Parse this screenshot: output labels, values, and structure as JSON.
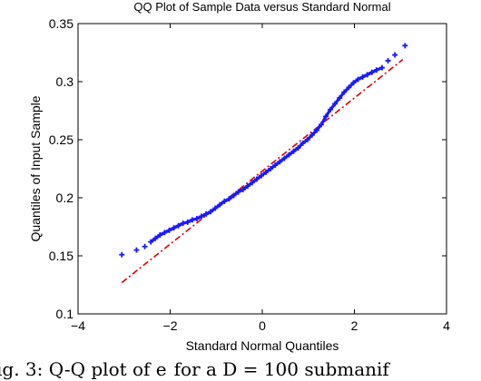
{
  "chart_data": {
    "type": "scatter",
    "title": "QQ Plot of Sample Data versus Standard Normal",
    "xlabel": "Standard Normal Quantiles",
    "ylabel": "Quantiles of Input Sample",
    "xlim": [
      -4,
      4
    ],
    "ylim": [
      0.1,
      0.35
    ],
    "xticks": [
      -4,
      -2,
      0,
      2,
      4
    ],
    "yticks": [
      0.1,
      0.15,
      0.2,
      0.25,
      0.3,
      0.35
    ],
    "xtick_labels": [
      "−4",
      "−2",
      "0",
      "2",
      "4"
    ],
    "ytick_labels": [
      "0.1",
      "0.15",
      "0.2",
      "0.25",
      "0.3",
      "0.35"
    ],
    "grid": false,
    "marker": "+",
    "point_color": "#1a1aff",
    "reference_line_color": "#dd0000",
    "reference_line_style": "dash-dot",
    "reference_line": {
      "x": [
        -3.05,
        3.05
      ],
      "y": [
        0.127,
        0.319
      ]
    },
    "points": [
      [
        -3.05,
        0.151
      ],
      [
        -2.73,
        0.155
      ],
      [
        -2.55,
        0.158
      ],
      [
        -2.42,
        0.162
      ],
      [
        -2.32,
        0.165
      ],
      [
        -2.22,
        0.168
      ],
      [
        -2.12,
        0.17
      ],
      [
        -2.02,
        0.172
      ],
      [
        -1.92,
        0.174
      ],
      [
        -1.82,
        0.176
      ],
      [
        -1.72,
        0.178
      ],
      [
        -1.62,
        0.179
      ],
      [
        -1.52,
        0.181
      ],
      [
        -1.42,
        0.182
      ],
      [
        -1.32,
        0.184
      ],
      [
        -1.22,
        0.186
      ],
      [
        -1.12,
        0.188
      ],
      [
        -1.02,
        0.191
      ],
      [
        -0.92,
        0.194
      ],
      [
        -0.82,
        0.197
      ],
      [
        -0.72,
        0.199
      ],
      [
        -0.62,
        0.202
      ],
      [
        -0.52,
        0.205
      ],
      [
        -0.42,
        0.207
      ],
      [
        -0.32,
        0.21
      ],
      [
        -0.22,
        0.213
      ],
      [
        -0.12,
        0.216
      ],
      [
        -0.02,
        0.219
      ],
      [
        0.08,
        0.222
      ],
      [
        0.18,
        0.225
      ],
      [
        0.28,
        0.228
      ],
      [
        0.38,
        0.231
      ],
      [
        0.48,
        0.234
      ],
      [
        0.58,
        0.237
      ],
      [
        0.68,
        0.24
      ],
      [
        0.78,
        0.243
      ],
      [
        0.88,
        0.247
      ],
      [
        0.98,
        0.25
      ],
      [
        1.08,
        0.254
      ],
      [
        1.18,
        0.258
      ],
      [
        1.28,
        0.263
      ],
      [
        1.38,
        0.27
      ],
      [
        1.48,
        0.276
      ],
      [
        1.58,
        0.281
      ],
      [
        1.68,
        0.286
      ],
      [
        1.78,
        0.291
      ],
      [
        1.88,
        0.295
      ],
      [
        1.98,
        0.299
      ],
      [
        2.08,
        0.302
      ],
      [
        2.18,
        0.304
      ],
      [
        2.28,
        0.306
      ],
      [
        2.38,
        0.308
      ],
      [
        2.48,
        0.31
      ],
      [
        2.6,
        0.312
      ],
      [
        2.73,
        0.318
      ],
      [
        2.88,
        0.323
      ],
      [
        3.1,
        0.331
      ]
    ]
  },
  "caption": "ig. 3: Q-Q plot of e  for a D = 100 submanif"
}
